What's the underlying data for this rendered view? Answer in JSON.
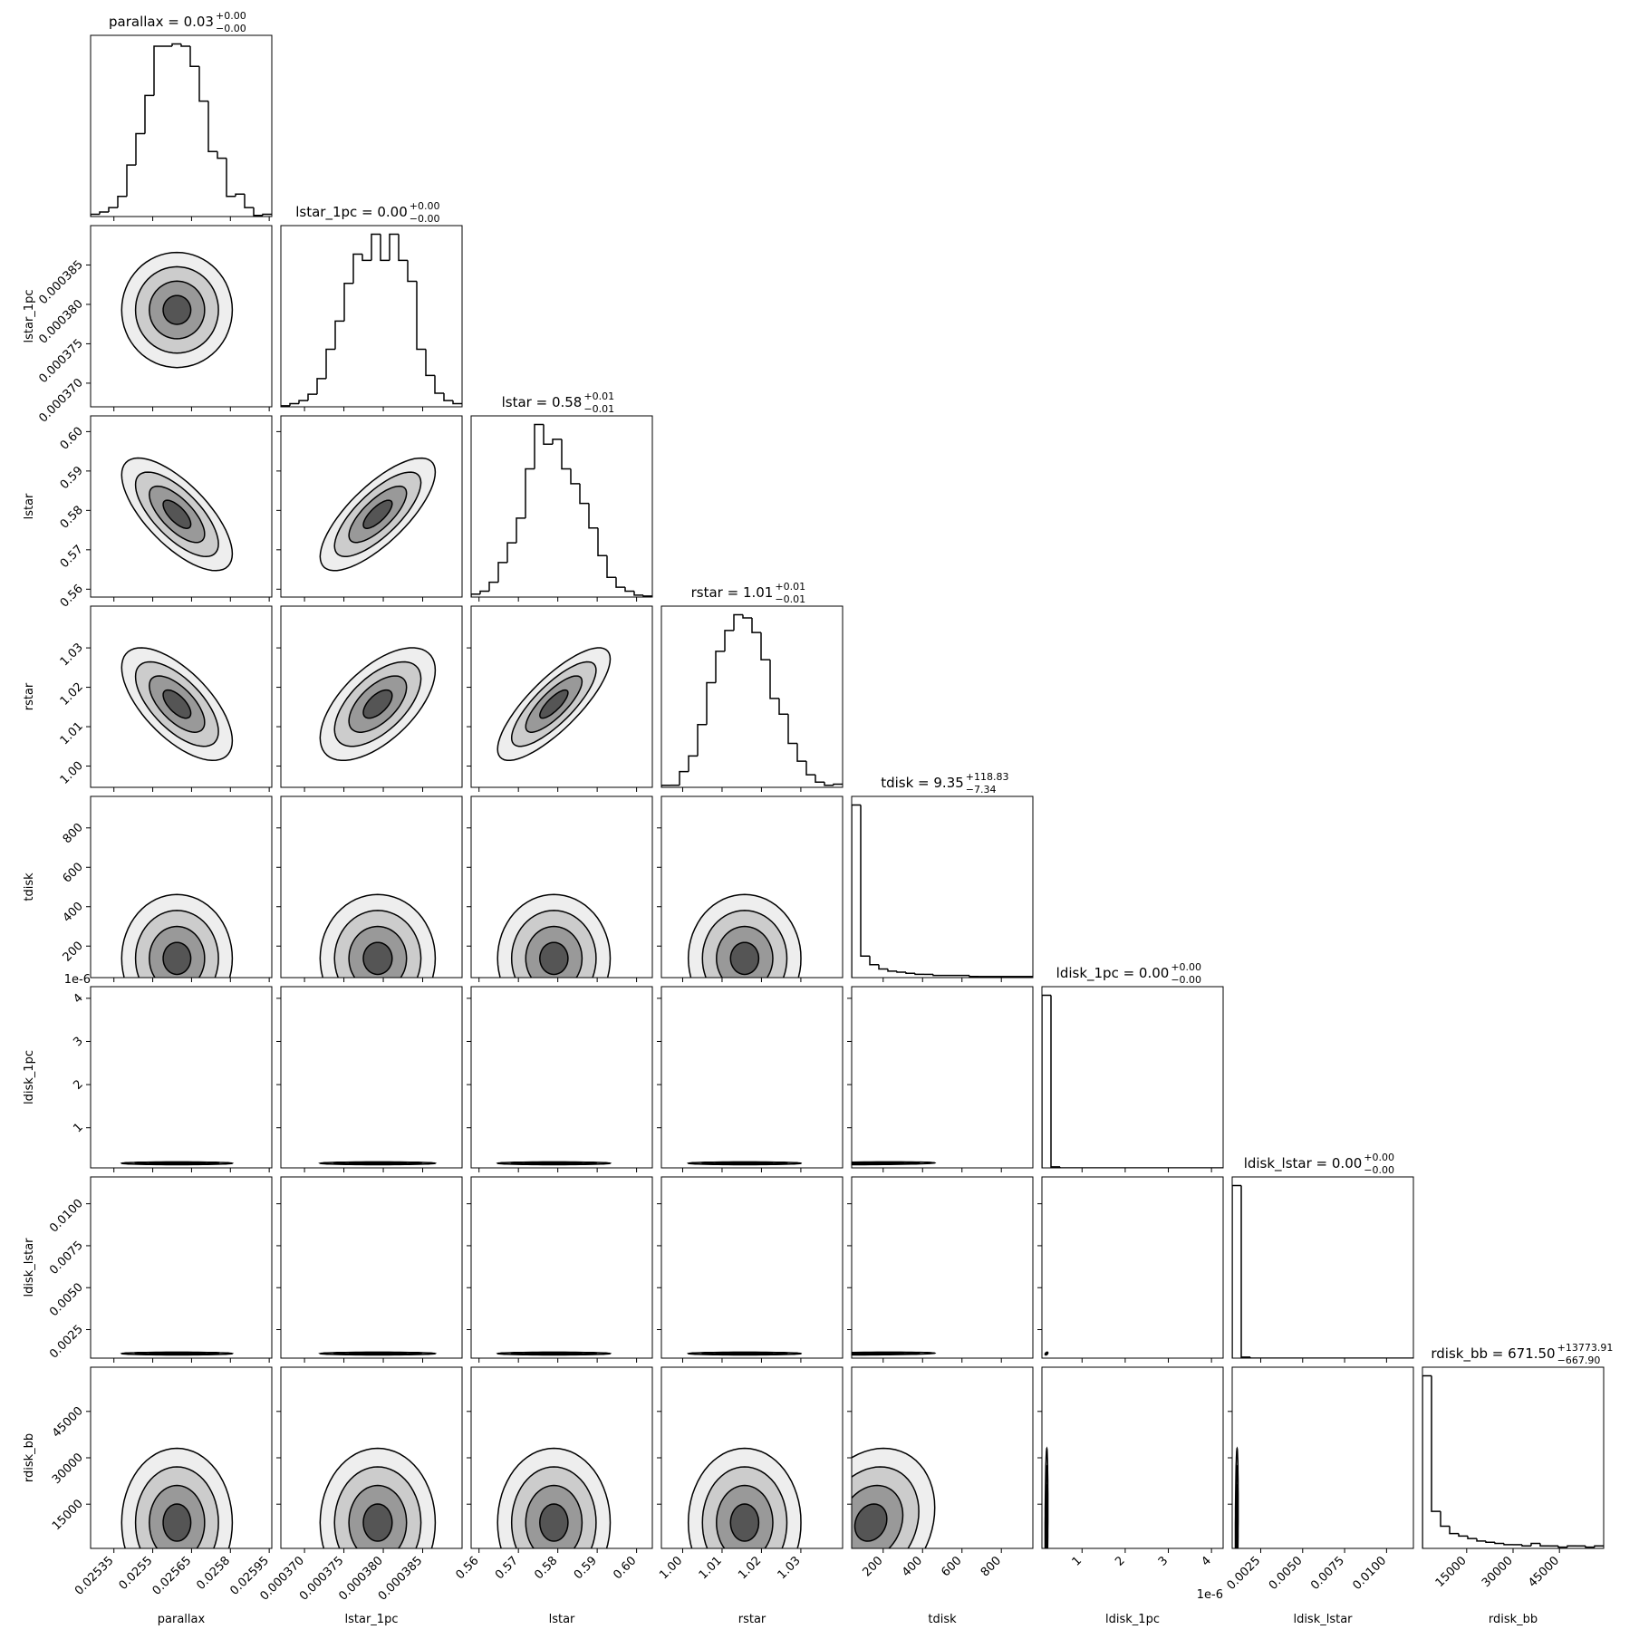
{
  "chart_data": {
    "type": "corner",
    "line_color": "#000000",
    "level_fills": [
      "#eeeeee",
      "#cccccc",
      "#999999",
      "#555555"
    ],
    "params": [
      {
        "name": "parallax",
        "title": "parallax = 0.03",
        "title_sup": "+0.00",
        "title_sub": "−0.00",
        "lim": [
          0.02526,
          0.02596
        ],
        "ticks": [
          0.02535,
          0.0255,
          0.02565,
          0.0258,
          0.02595
        ],
        "bins": [
          0.02526,
          0.025295,
          0.02533,
          0.025365,
          0.0254,
          0.025435,
          0.02547,
          0.025505,
          0.02554,
          0.025575,
          0.02561,
          0.025645,
          0.02568,
          0.025715,
          0.02575,
          0.025785,
          0.02582,
          0.025855,
          0.02589,
          0.025925,
          0.02596
        ],
        "counts": [
          2,
          4,
          8,
          18,
          46,
          74,
          108,
          152,
          152,
          154,
          152,
          134,
          103,
          58,
          52,
          18,
          20,
          8,
          1,
          2
        ]
      },
      {
        "name": "lstar_1pc",
        "title": "lstar_1pc = 0.00",
        "title_sup": "+0.00",
        "title_sub": "−0.00",
        "lim": [
          0.000367,
          0.00039
        ],
        "ticks": [
          {
            "value": 0.00037,
            "label": "0.000370"
          },
          0.000375,
          {
            "value": 0.00038,
            "label": "0.000380"
          },
          0.000385
        ],
        "bins": [
          0.000367,
          0.00036815,
          0.0003693,
          0.00037045,
          0.0003716,
          0.00037275,
          0.0003739,
          0.00037505,
          0.0003762,
          0.00037735,
          0.0003785,
          0.00037965,
          0.0003808,
          0.00038195,
          0.0003831,
          0.00038425,
          0.0003854,
          0.00038655,
          0.0003877,
          0.00038885,
          0.00039
        ],
        "counts": [
          1,
          3,
          6,
          12,
          27,
          55,
          82,
          118,
          146,
          140,
          165,
          140,
          165,
          140,
          120,
          55,
          30,
          13,
          6,
          3
        ]
      },
      {
        "name": "lstar",
        "title": "lstar = 0.58",
        "title_sup": "+0.01",
        "title_sub": "−0.01",
        "lim": [
          0.558,
          0.604
        ],
        "ticks": [
          0.56,
          0.57,
          0.58,
          0.59,
          {
            "value": 0.6,
            "label": "0.60"
          }
        ],
        "bins": [
          0.558,
          0.5603,
          0.5626,
          0.5649,
          0.5672,
          0.5695,
          0.5718,
          0.5741,
          0.5764,
          0.5787,
          0.581,
          0.5833,
          0.5856,
          0.5879,
          0.5902,
          0.5925,
          0.5948,
          0.5971,
          0.5994,
          0.6017,
          0.604
        ],
        "counts": [
          3,
          6,
          15,
          35,
          55,
          80,
          130,
          175,
          155,
          160,
          130,
          115,
          95,
          70,
          42,
          20,
          10,
          6,
          2,
          1
        ]
      },
      {
        "name": "rstar",
        "title": "rstar = 1.01",
        "title_sup": "+0.01",
        "title_sub": "−0.01",
        "lim": [
          0.9946,
          1.0406
        ],
        "ticks": [
          {
            "value": 1.0,
            "label": "1.00"
          },
          1.01,
          1.02,
          1.03
        ],
        "bins": [
          0.9946,
          0.9969,
          0.9992,
          1.0015,
          1.0038,
          1.0061,
          1.0084,
          1.0107,
          1.013,
          1.0153,
          1.0176,
          1.0199,
          1.0222,
          1.0245,
          1.0268,
          1.0291,
          1.0314,
          1.0337,
          1.036,
          1.0383,
          1.0406
        ],
        "counts": [
          2,
          2,
          15,
          30,
          60,
          100,
          130,
          150,
          165,
          162,
          148,
          122,
          85,
          70,
          42,
          25,
          12,
          5,
          2,
          3
        ]
      },
      {
        "name": "tdisk",
        "title": "tdisk = 9.35",
        "title_sup": "+118.83",
        "title_sub": "−7.34",
        "lim": [
          40,
          960
        ],
        "ticks": [
          200,
          400,
          600,
          800
        ],
        "bins": [
          40,
          86,
          132,
          178,
          224,
          270,
          316,
          362,
          408,
          454,
          500,
          546,
          592,
          638,
          684,
          730,
          776,
          822,
          868,
          914,
          960
        ],
        "counts": [
          160,
          20,
          12,
          8,
          6,
          5,
          4,
          3,
          3,
          2,
          2,
          2,
          2,
          1,
          1,
          1,
          1,
          1,
          1,
          1
        ]
      },
      {
        "name": "ldisk_1pc",
        "title": "ldisk_1pc = 0.00",
        "title_sup": "+0.00",
        "title_sub": "−0.00",
        "lim": [
          7e-08,
          4.27e-06
        ],
        "offset_label": "1e-6",
        "ticks": [
          {
            "value": 1e-06,
            "label": "1"
          },
          {
            "value": 2e-06,
            "label": "2"
          },
          {
            "value": 3e-06,
            "label": "3"
          },
          {
            "value": 4e-06,
            "label": "4"
          }
        ],
        "bins": [
          7e-08,
          2.8e-07,
          4.9e-07,
          7e-07,
          9.1e-07,
          1.12e-06,
          1.33e-06,
          1.54e-06,
          1.75e-06,
          1.96e-06,
          2.17e-06,
          2.38e-06,
          2.59e-06,
          2.8e-06,
          3.01e-06,
          3.22e-06,
          3.43e-06,
          3.64e-06,
          3.85e-06,
          4.06e-06,
          4.27e-06
        ],
        "counts": [
          165,
          1,
          0,
          0,
          0,
          0,
          0,
          0,
          0,
          0,
          0,
          0,
          0,
          0,
          0,
          0,
          0,
          0,
          0,
          0
        ]
      },
      {
        "name": "ldisk_lstar",
        "title": "ldisk_lstar = 0.00",
        "title_sup": "+0.00",
        "title_sub": "−0.00",
        "lim": [
          0.0008,
          0.0116
        ],
        "ticks": [
          0.0025,
          {
            "value": 0.005,
            "label": "0.0050"
          },
          0.0075,
          {
            "value": 0.01,
            "label": "0.0100"
          }
        ],
        "bins": [
          0.0008,
          0.00134,
          0.00188,
          0.00242,
          0.00296,
          0.0035,
          0.00404,
          0.00458,
          0.00512,
          0.00566,
          0.0062,
          0.00674,
          0.00728,
          0.00782,
          0.00836,
          0.0089,
          0.00944,
          0.00998,
          0.01052,
          0.01106,
          0.0116
        ],
        "counts": [
          165,
          1,
          0,
          0,
          0,
          0,
          0,
          0,
          0,
          0,
          0,
          0,
          0,
          0,
          0,
          0,
          0,
          0,
          0,
          0
        ]
      },
      {
        "name": "rdisk_bb",
        "title": "rdisk_bb = 671.50",
        "title_sup": "+13773.91",
        "title_sub": "−667.90",
        "lim": [
          700,
          59300
        ],
        "ticks": [
          15000,
          30000,
          45000
        ],
        "bins": [
          700,
          3630,
          6560,
          9490,
          12420,
          15350,
          18280,
          21210,
          24140,
          27070,
          30000,
          32930,
          35860,
          38790,
          41720,
          44650,
          47580,
          50510,
          53440,
          56370,
          59300
        ],
        "counts": [
          140,
          30,
          18,
          12,
          10,
          8,
          6,
          5,
          4,
          3,
          3,
          2,
          4,
          2,
          2,
          1,
          2,
          2,
          1,
          2
        ]
      }
    ],
    "correlations": [
      [
        0.0
      ],
      [
        -0.7,
        0.75
      ],
      [
        -0.65,
        0.6,
        0.8
      ],
      [
        0.0,
        0.0,
        0.0,
        0.0
      ],
      [
        0.0,
        0.0,
        0.0,
        0.0,
        0.3
      ],
      [
        0.0,
        0.0,
        0.0,
        0.0,
        0.3,
        0.5
      ],
      [
        0.0,
        0.0,
        0.0,
        0.0,
        0.2,
        0.2,
        0.2
      ]
    ]
  }
}
